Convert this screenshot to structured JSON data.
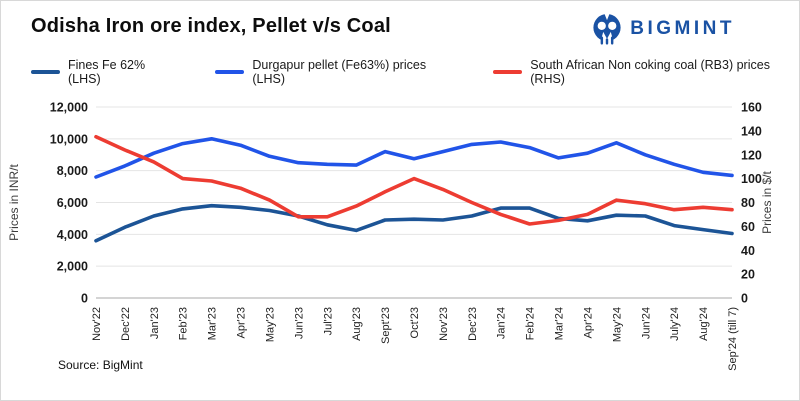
{
  "header": {
    "title": "Odisha Iron ore index, Pellet v/s Coal",
    "brand": "BIGMINT",
    "brand_color": "#1A52A4"
  },
  "source": "Source: BigMint",
  "chart_data": {
    "type": "line",
    "title": "Odisha Iron ore index, Pellet v/s Coal",
    "grid": true,
    "legend_position": "top",
    "categories": [
      "Nov'22",
      "Dec'22",
      "Jan'23",
      "Feb'23",
      "Mar'23",
      "Apr'23",
      "May'23",
      "Jun'23",
      "Jul'23",
      "Aug'23",
      "Sept'23",
      "Oct'23",
      "Nov'23",
      "Dec'23",
      "Jan'24",
      "Feb'24",
      "Mar'24",
      "Apr'24",
      "May'24",
      "Jun'24",
      "July'24",
      "Aug'24",
      "Sep'24 (till 7)"
    ],
    "series": [
      {
        "name": "Fines Fe 62% (LHS)",
        "axis": "left",
        "color": "#1C5496",
        "values": [
          3600,
          4450,
          5150,
          5600,
          5800,
          5700,
          5500,
          5150,
          4600,
          4250,
          4900,
          4950,
          4900,
          5150,
          5650,
          5650,
          5000,
          4850,
          5200,
          5150,
          4550,
          4300,
          4050
        ]
      },
      {
        "name": "Durgapur pellet (Fe63%) prices (LHS)",
        "axis": "left",
        "color": "#2154E8",
        "values": [
          7600,
          8300,
          9100,
          9700,
          10000,
          9600,
          8900,
          8500,
          8400,
          8350,
          9200,
          8750,
          9200,
          9650,
          9800,
          9450,
          8800,
          9100,
          9750,
          9000,
          8400,
          7900,
          7700
        ]
      },
      {
        "name": "South African Non coking coal (RB3) prices (RHS)",
        "axis": "right",
        "color": "#ED3C32",
        "values": [
          135,
          124,
          114,
          100,
          98,
          92,
          82,
          68,
          68,
          77,
          89,
          100,
          91,
          80,
          70,
          62,
          65,
          70,
          82,
          79,
          74,
          76,
          74
        ]
      }
    ],
    "y_left": {
      "label": "Prices in INR/t",
      "min": 0,
      "max": 12000,
      "step": 2000
    },
    "y_right": {
      "label": "Prices in $/t",
      "min": 0,
      "max": 160,
      "step": 20
    }
  }
}
